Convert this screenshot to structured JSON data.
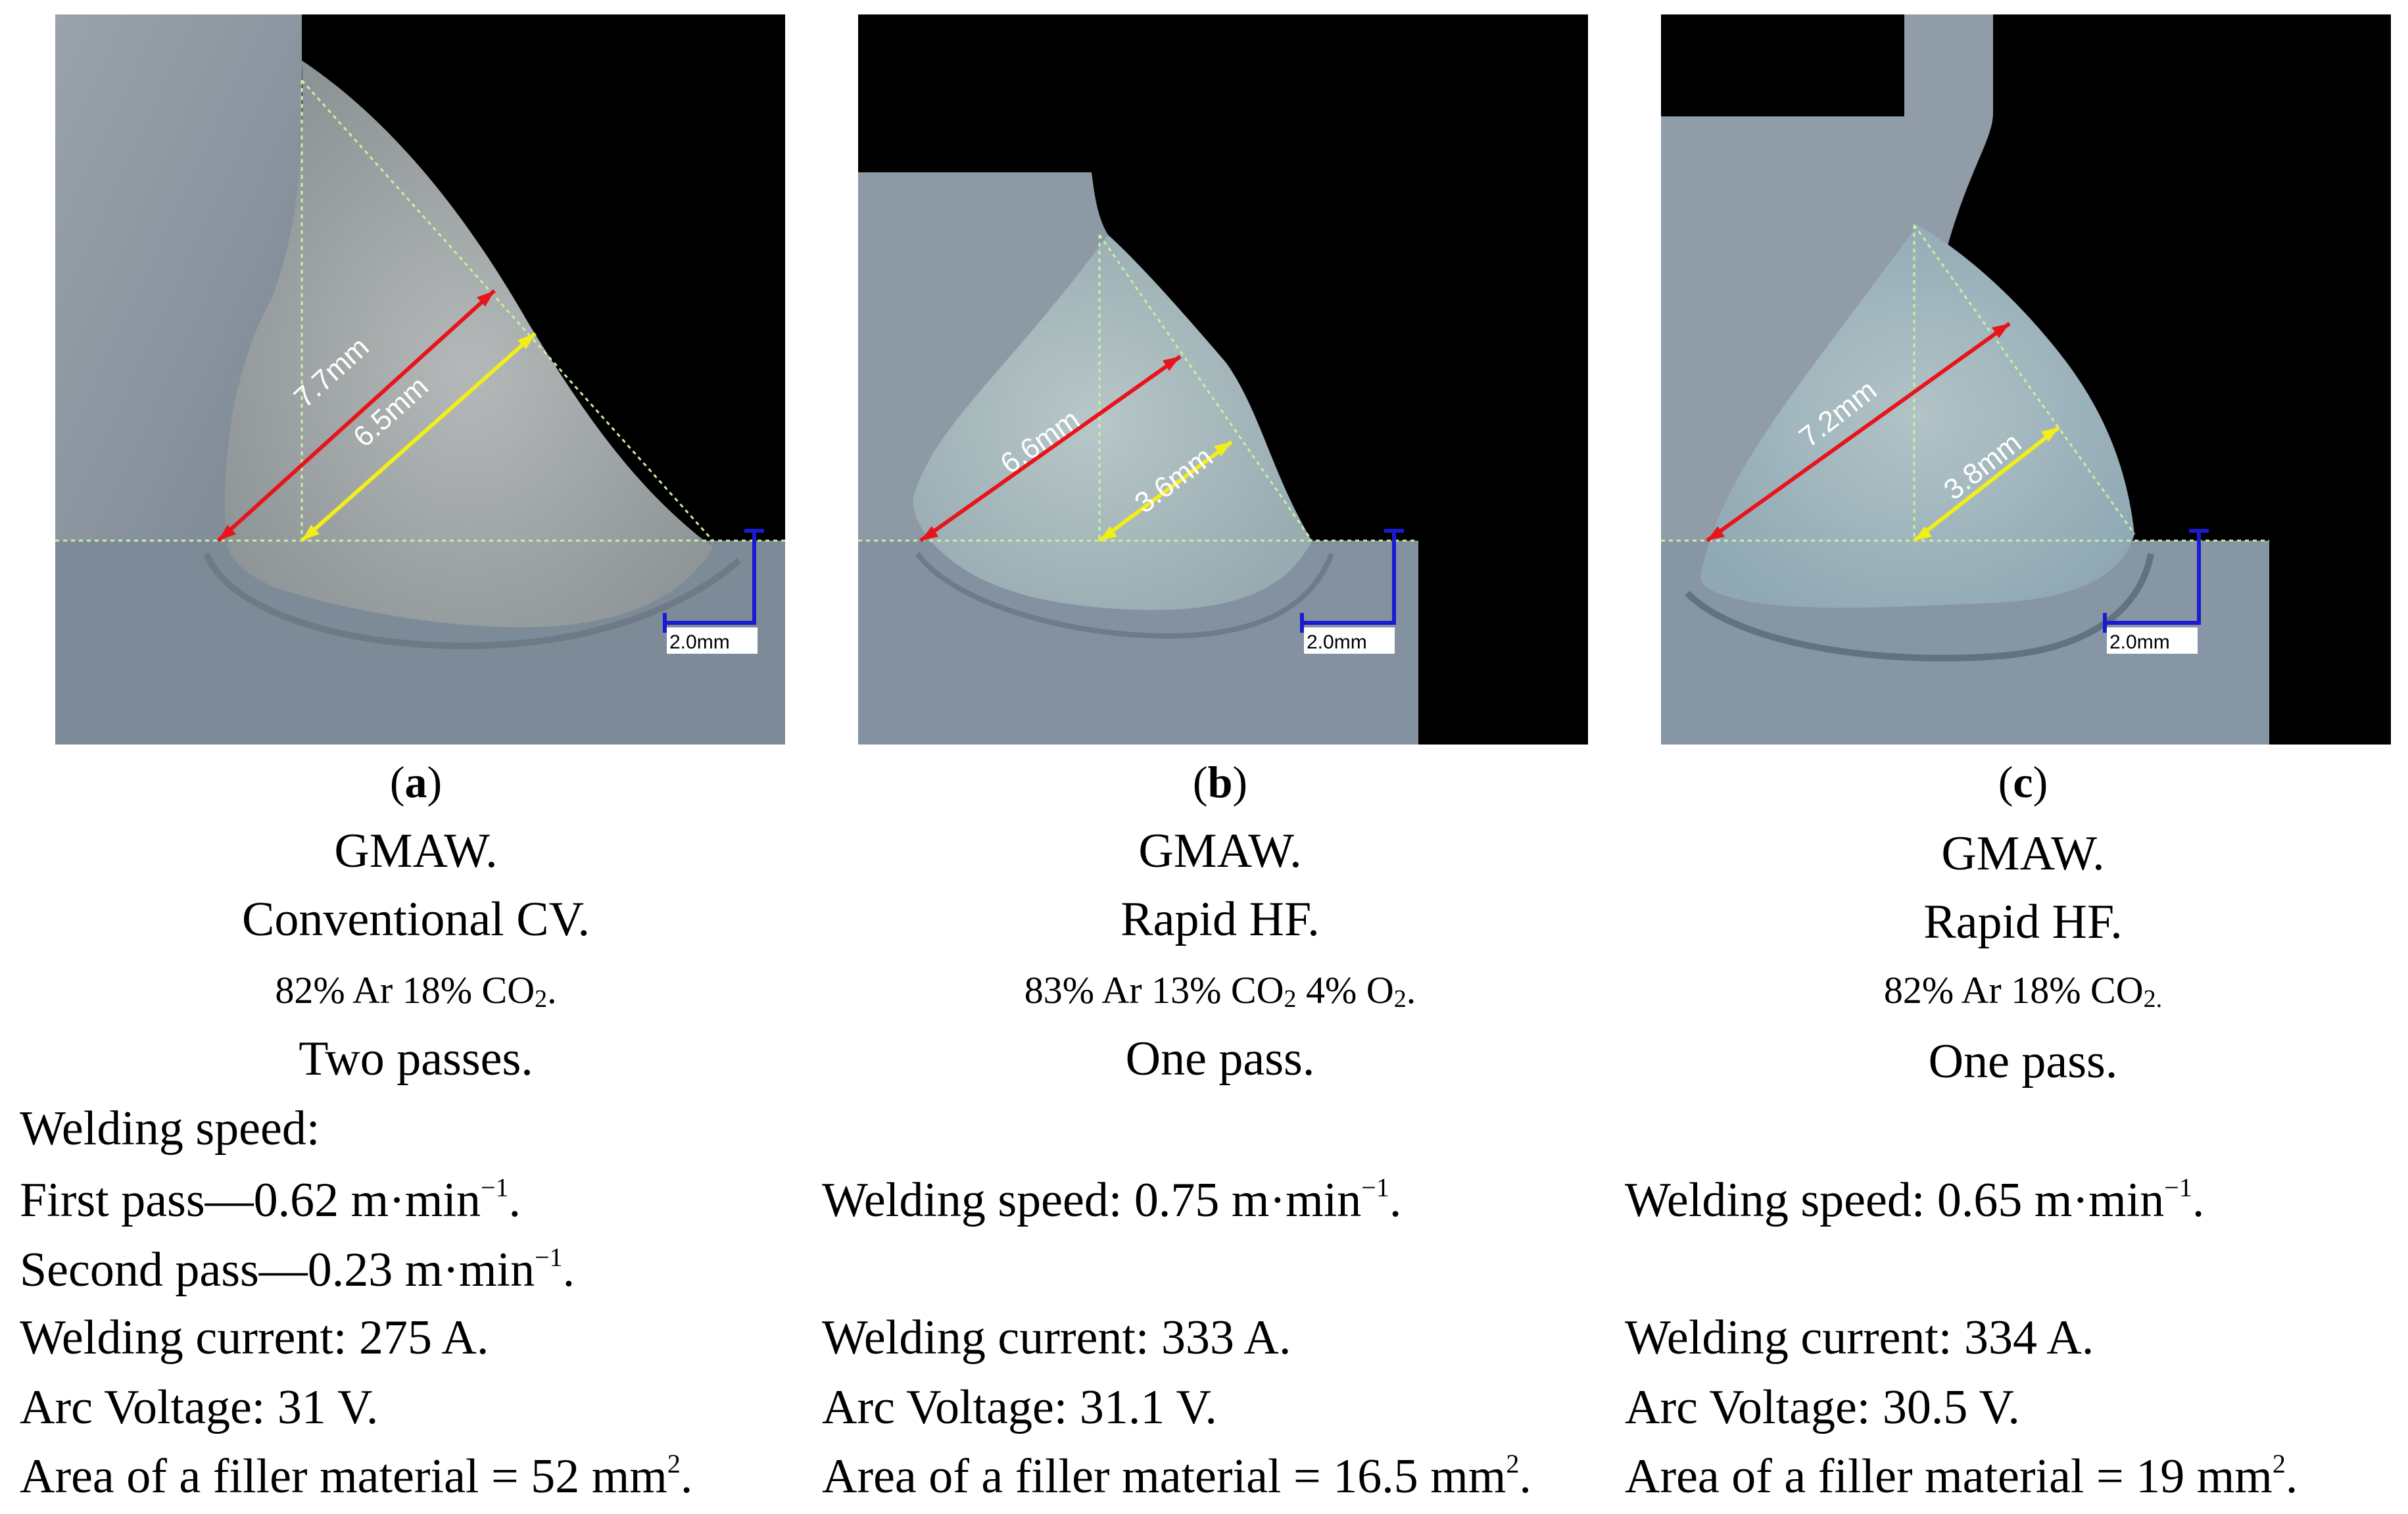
{
  "figure": {
    "panels": [
      {
        "id": "a",
        "image": {
          "measure_red": "7.7mm",
          "measure_yellow": "6.5mm",
          "scale_bar": "2.0mm"
        },
        "caption": {
          "letter": "a",
          "process": "GMAW.",
          "mode": "Conventional CV.",
          "gas": {
            "part1": "82% Ar 18% CO",
            "sub1": "2",
            "part2": ".",
            "sub2": "",
            "part3": ""
          },
          "passes": "Two passes."
        },
        "params": {
          "speed_heading": "Welding speed:",
          "speed_first": "First pass—0.62 m·min",
          "speed_first_exp": "−1",
          "speed_first_end": ".",
          "speed_second": "Second pass—0.23 m·min",
          "speed_second_exp": "−1",
          "speed_second_end": ".",
          "current": "Welding current: 275 A.",
          "voltage": "Arc Voltage: 31 V.",
          "area": "Area of a filler material = 52 mm",
          "area_exp": "2",
          "area_end": "."
        }
      },
      {
        "id": "b",
        "image": {
          "measure_red": "6.6mm",
          "measure_yellow": "3.6mm",
          "scale_bar": "2.0mm"
        },
        "caption": {
          "letter": "b",
          "process": "GMAW.",
          "mode": "Rapid HF.",
          "gas": {
            "part1": "83% Ar 13% CO",
            "sub1": "2",
            "part2": " 4% O",
            "sub2": "2",
            "part3": "."
          },
          "passes": "One pass."
        },
        "params": {
          "speed": "Welding speed: 0.75 m·min",
          "speed_exp": "−1",
          "speed_end": ".",
          "current": "Welding current: 333 A.",
          "voltage": "Arc Voltage: 31.1 V.",
          "area": "Area of a filler material = 16.5 mm",
          "area_exp": "2",
          "area_end": "."
        }
      },
      {
        "id": "c",
        "image": {
          "measure_red": "7.2mm",
          "measure_yellow": "3.8mm",
          "scale_bar": "2.0mm"
        },
        "caption": {
          "letter": "c",
          "process": "GMAW.",
          "mode": "Rapid HF.",
          "gas": {
            "part1": "82% Ar 18% CO",
            "sub1": "2.",
            "part2": "",
            "sub2": "",
            "part3": ""
          },
          "passes": "One pass."
        },
        "params": {
          "speed": "Welding speed: 0.65 m·min",
          "speed_exp": "−1",
          "speed_end": ".",
          "current": "Welding current: 334 A.",
          "voltage": "Arc Voltage: 30.5 V.",
          "area": "Area of a filler material = 19 mm",
          "area_exp": "2",
          "area_end": "."
        }
      }
    ],
    "colors": {
      "background_black": "#000000",
      "metal_gray": "#8e9aa6",
      "weld_blue_gray": "#9fb0b6",
      "measure_red": "#e8141c",
      "measure_yellow": "#f2ee1a",
      "guide_green": "#c8f0a0",
      "scale_blue": "#1a1ad0"
    }
  }
}
